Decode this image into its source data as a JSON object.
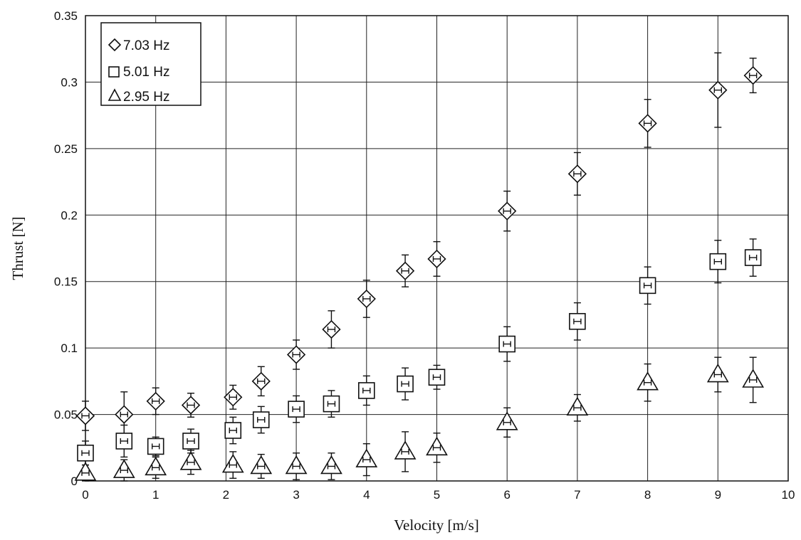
{
  "chart_data": {
    "type": "scatter",
    "xlabel": "Velocity [m/s]",
    "ylabel": "Thrust [N]",
    "xlim": [
      0,
      10
    ],
    "ylim": [
      0,
      0.35
    ],
    "xticks": [
      "0",
      "1",
      "2",
      "3",
      "4",
      "5",
      "6",
      "7",
      "8",
      "9",
      "10"
    ],
    "yticks": [
      "0",
      "0.05",
      "0.1",
      "0.15",
      "0.2",
      "0.25",
      "0.3",
      "0.35"
    ],
    "grid": true,
    "legend_position": "top-left",
    "series": [
      {
        "name": "7.03 Hz",
        "marker": "diamond",
        "points": [
          {
            "x": 0,
            "y": 0.049,
            "err": 0.011
          },
          {
            "x": 0.55,
            "y": 0.05,
            "err": 0.017
          },
          {
            "x": 1.0,
            "y": 0.06,
            "err": 0.01
          },
          {
            "x": 1.5,
            "y": 0.057,
            "err": 0.009
          },
          {
            "x": 2.1,
            "y": 0.063,
            "err": 0.009
          },
          {
            "x": 2.5,
            "y": 0.075,
            "err": 0.011
          },
          {
            "x": 3.0,
            "y": 0.095,
            "err": 0.011
          },
          {
            "x": 3.5,
            "y": 0.114,
            "err": 0.014
          },
          {
            "x": 4.0,
            "y": 0.137,
            "err": 0.014
          },
          {
            "x": 4.55,
            "y": 0.158,
            "err": 0.012
          },
          {
            "x": 5.0,
            "y": 0.167,
            "err": 0.013
          },
          {
            "x": 6.0,
            "y": 0.203,
            "err": 0.015
          },
          {
            "x": 7.0,
            "y": 0.231,
            "err": 0.016
          },
          {
            "x": 8.0,
            "y": 0.269,
            "err": 0.018
          },
          {
            "x": 9.0,
            "y": 0.294,
            "err": 0.028
          },
          {
            "x": 9.5,
            "y": 0.305,
            "err": 0.013
          }
        ]
      },
      {
        "name": "5.01 Hz",
        "marker": "square",
        "points": [
          {
            "x": 0,
            "y": 0.021,
            "err": 0.009
          },
          {
            "x": 0.55,
            "y": 0.03,
            "err": 0.012
          },
          {
            "x": 1.0,
            "y": 0.026,
            "err": 0.007
          },
          {
            "x": 1.5,
            "y": 0.03,
            "err": 0.009
          },
          {
            "x": 2.1,
            "y": 0.038,
            "err": 0.01
          },
          {
            "x": 2.5,
            "y": 0.046,
            "err": 0.01
          },
          {
            "x": 3.0,
            "y": 0.054,
            "err": 0.01
          },
          {
            "x": 3.5,
            "y": 0.058,
            "err": 0.01
          },
          {
            "x": 4.0,
            "y": 0.068,
            "err": 0.011
          },
          {
            "x": 4.55,
            "y": 0.073,
            "err": 0.012
          },
          {
            "x": 5.0,
            "y": 0.078,
            "err": 0.009
          },
          {
            "x": 6.0,
            "y": 0.103,
            "err": 0.013
          },
          {
            "x": 7.0,
            "y": 0.12,
            "err": 0.014
          },
          {
            "x": 8.0,
            "y": 0.147,
            "err": 0.014
          },
          {
            "x": 9.0,
            "y": 0.165,
            "err": 0.016
          },
          {
            "x": 9.5,
            "y": 0.168,
            "err": 0.014
          }
        ]
      },
      {
        "name": "2.95 Hz",
        "marker": "triangle",
        "points": [
          {
            "x": 0,
            "y": 0.006,
            "err": 0.006
          },
          {
            "x": 0.55,
            "y": 0.008,
            "err": 0.008
          },
          {
            "x": 1.0,
            "y": 0.01,
            "err": 0.008
          },
          {
            "x": 1.5,
            "y": 0.014,
            "err": 0.009
          },
          {
            "x": 2.1,
            "y": 0.012,
            "err": 0.01
          },
          {
            "x": 2.5,
            "y": 0.011,
            "err": 0.009
          },
          {
            "x": 3.0,
            "y": 0.011,
            "err": 0.01
          },
          {
            "x": 3.5,
            "y": 0.011,
            "err": 0.01
          },
          {
            "x": 4.0,
            "y": 0.016,
            "err": 0.012
          },
          {
            "x": 4.55,
            "y": 0.022,
            "err": 0.015
          },
          {
            "x": 5.0,
            "y": 0.025,
            "err": 0.011
          },
          {
            "x": 6.0,
            "y": 0.044,
            "err": 0.011
          },
          {
            "x": 7.0,
            "y": 0.055,
            "err": 0.01
          },
          {
            "x": 8.0,
            "y": 0.074,
            "err": 0.014
          },
          {
            "x": 9.0,
            "y": 0.08,
            "err": 0.013
          },
          {
            "x": 9.5,
            "y": 0.076,
            "err": 0.017
          }
        ]
      }
    ]
  }
}
